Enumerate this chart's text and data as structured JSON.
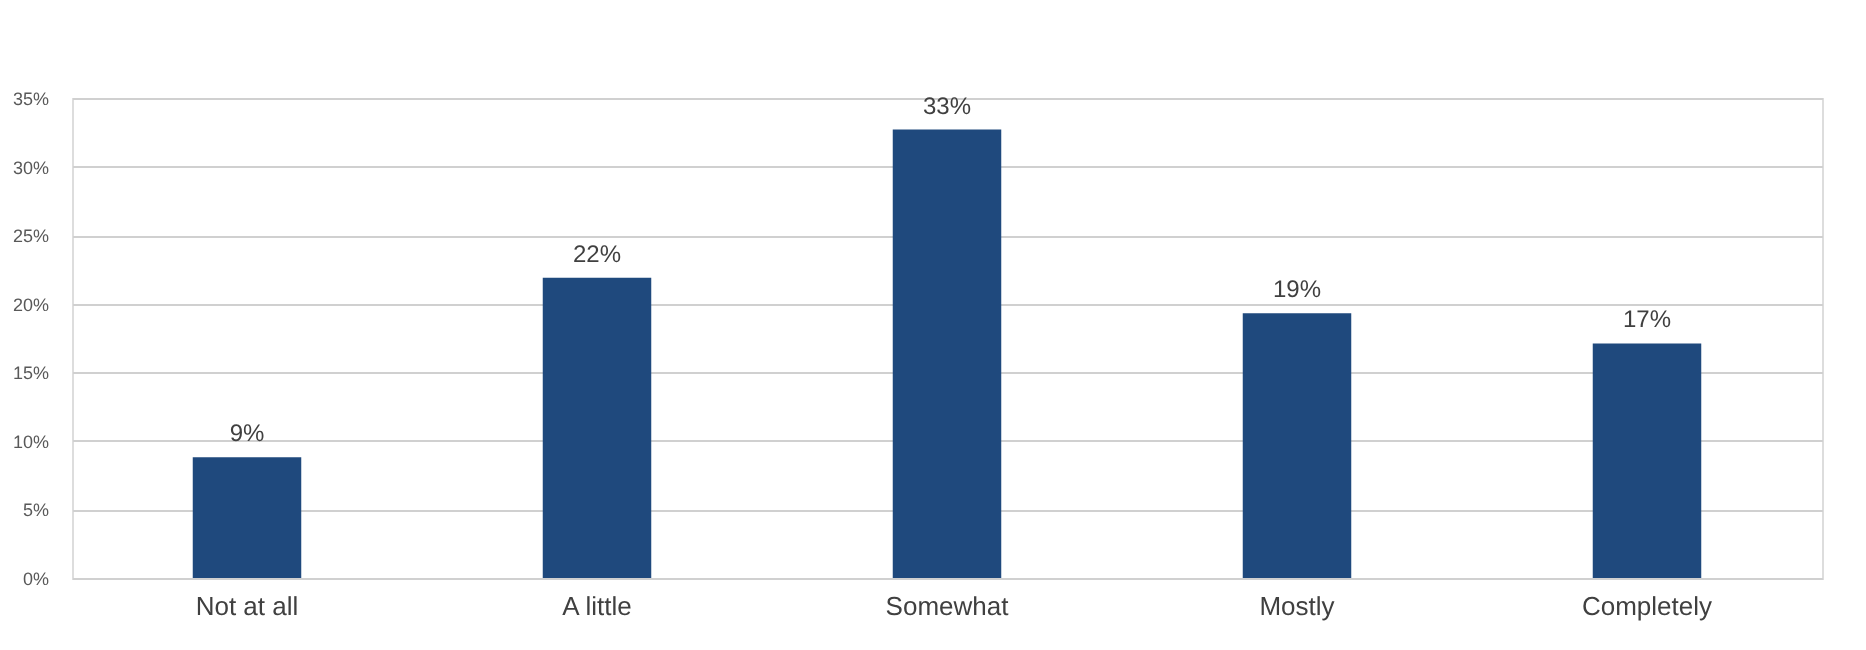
{
  "chart_data": {
    "type": "bar",
    "categories": [
      "Not at all",
      "A little",
      "Somewhat",
      "Mostly",
      "Completely"
    ],
    "values": [
      8.8,
      21.9,
      32.7,
      19.3,
      17.1
    ],
    "value_labels": [
      "9%",
      "22%",
      "33%",
      "19%",
      "17%"
    ],
    "color": "#1f497d",
    "ylim": [
      0,
      35
    ],
    "yticks": [
      {
        "value": 0,
        "label": "0%"
      },
      {
        "value": 5,
        "label": "5%"
      },
      {
        "value": 10,
        "label": "10%"
      },
      {
        "value": 15,
        "label": "15%"
      },
      {
        "value": 20,
        "label": "20%"
      },
      {
        "value": 25,
        "label": "25%"
      },
      {
        "value": 30,
        "label": "30%"
      },
      {
        "value": 35,
        "label": "35%"
      }
    ],
    "grid": "y"
  }
}
